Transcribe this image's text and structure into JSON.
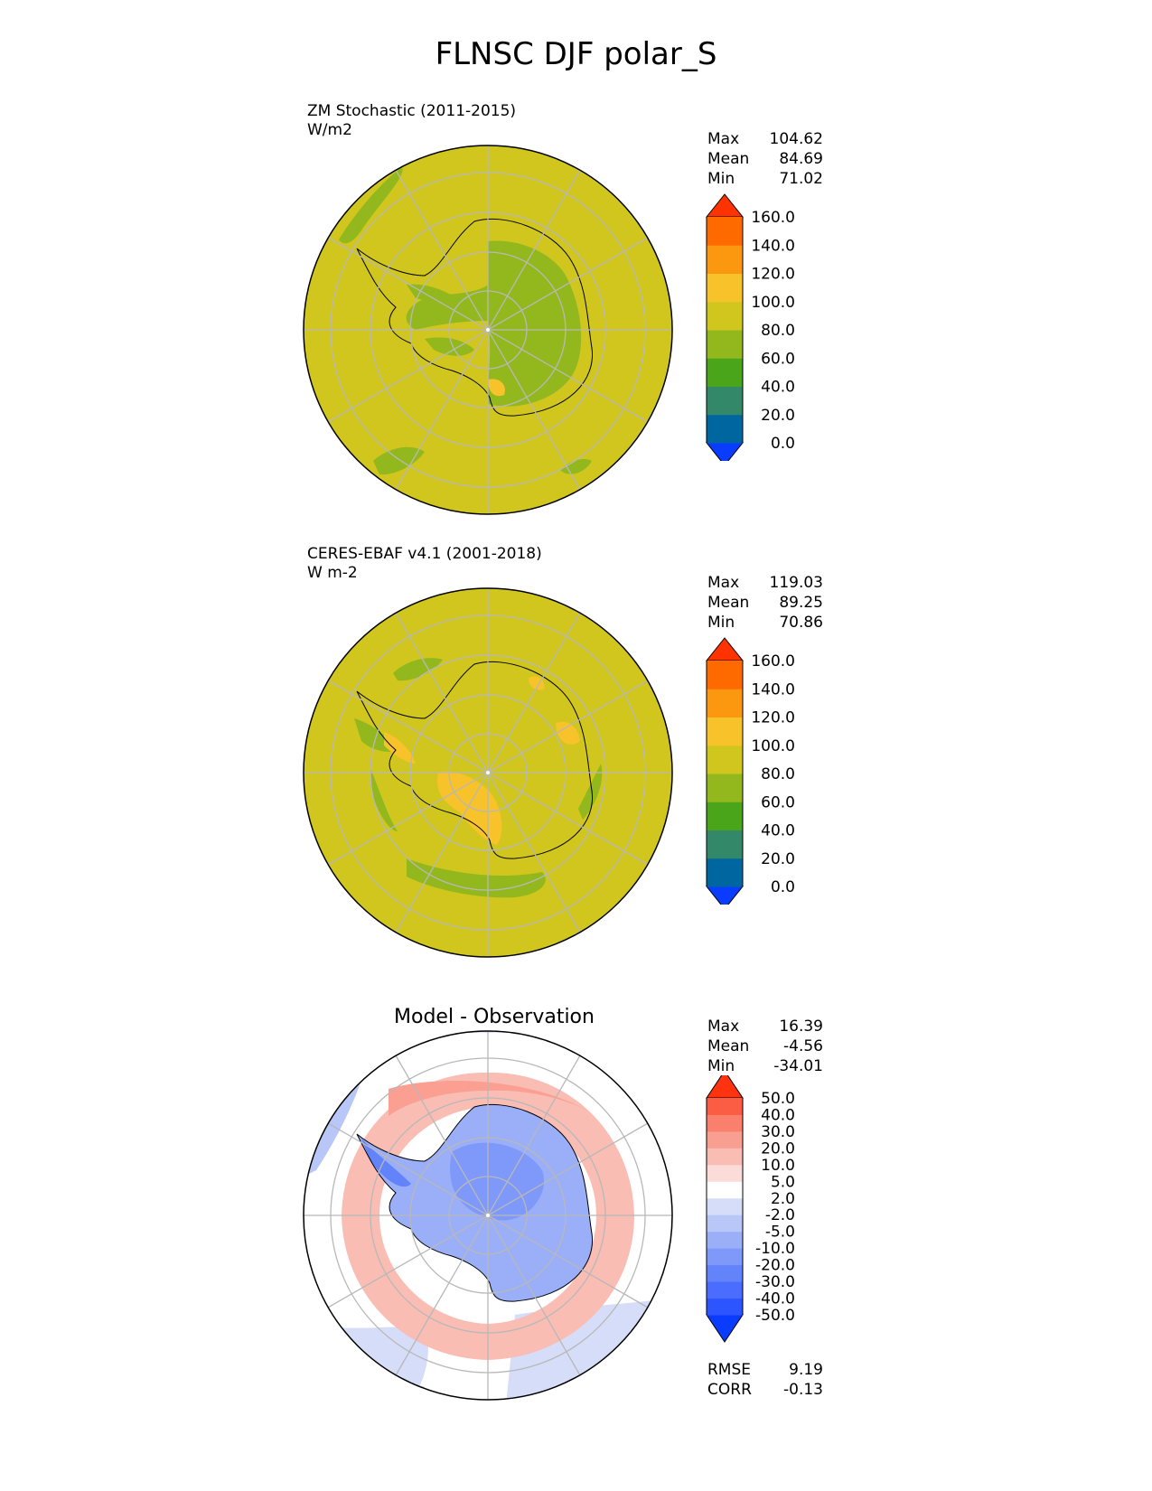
{
  "title": "FLNSC DJF polar_S",
  "panels": [
    {
      "label_line1": "ZM Stochastic (2011-2015)",
      "label_line2": "W/m2",
      "center_title": "",
      "stats": [
        {
          "name": "Max",
          "value": "104.62"
        },
        {
          "name": "Mean",
          "value": "84.69"
        },
        {
          "name": "Min",
          "value": "71.02"
        }
      ]
    },
    {
      "label_line1": "CERES-EBAF v4.1 (2001-2018)",
      "label_line2": "W m-2",
      "center_title": "",
      "stats": [
        {
          "name": "Max",
          "value": "119.03"
        },
        {
          "name": "Mean",
          "value": "89.25"
        },
        {
          "name": "Min",
          "value": "70.86"
        }
      ]
    },
    {
      "label_line1": "",
      "label_line2": "",
      "center_title": "Model - Observation",
      "stats": [
        {
          "name": "Max",
          "value": "16.39"
        },
        {
          "name": "Mean",
          "value": "-4.56"
        },
        {
          "name": "Min",
          "value": "-34.01"
        }
      ],
      "bottom_stats": [
        {
          "name": "RMSE",
          "value": "9.19"
        },
        {
          "name": "CORR",
          "value": "-0.13"
        }
      ]
    }
  ],
  "colorbars": {
    "abs": {
      "ticks": [
        "0.0",
        "20.0",
        "40.0",
        "60.0",
        "80.0",
        "100.0",
        "120.0",
        "140.0",
        "160.0"
      ],
      "colors": [
        "#0a3cff",
        "#0066a0",
        "#33886a",
        "#4aa51a",
        "#93b81e",
        "#d0c61e",
        "#f7c22a",
        "#fb9810",
        "#ff6a00",
        "#ff3300"
      ]
    },
    "diff": {
      "ticks": [
        "-50.0",
        "-40.0",
        "-30.0",
        "-20.0",
        "-10.0",
        "-5.0",
        "-2.0",
        "2.0",
        "5.0",
        "10.0",
        "20.0",
        "30.0",
        "40.0",
        "50.0"
      ],
      "colors": [
        "#0a3cff",
        "#2c55ff",
        "#4a6cff",
        "#6383fb",
        "#7f99fb",
        "#9aaff8",
        "#b8c6f8",
        "#d6ddf8",
        "#ffffff",
        "#fbdcd8",
        "#f9bdb4",
        "#f99f91",
        "#fa7f6c",
        "#fb5c44",
        "#ff3310"
      ]
    }
  },
  "chart_data": [
    {
      "type": "heatmap",
      "projection": "south polar stereographic",
      "title": "ZM Stochastic (2011-2015)",
      "units": "W/m2",
      "max": 104.62,
      "mean": 84.69,
      "min": 71.02,
      "colorbar_levels": [
        0,
        20,
        40,
        60,
        80,
        100,
        120,
        140,
        160
      ],
      "extend": "both"
    },
    {
      "type": "heatmap",
      "projection": "south polar stereographic",
      "title": "CERES-EBAF v4.1 (2001-2018)",
      "units": "W m-2",
      "max": 119.03,
      "mean": 89.25,
      "min": 70.86,
      "colorbar_levels": [
        0,
        20,
        40,
        60,
        80,
        100,
        120,
        140,
        160
      ],
      "extend": "both"
    },
    {
      "type": "heatmap",
      "projection": "south polar stereographic",
      "title": "Model - Observation",
      "max": 16.39,
      "mean": -4.56,
      "min": -34.01,
      "rmse": 9.19,
      "corr": -0.13,
      "colorbar_levels": [
        -50,
        -40,
        -30,
        -20,
        -10,
        -5,
        -2,
        2,
        5,
        10,
        20,
        30,
        40,
        50
      ],
      "extend": "both"
    }
  ]
}
